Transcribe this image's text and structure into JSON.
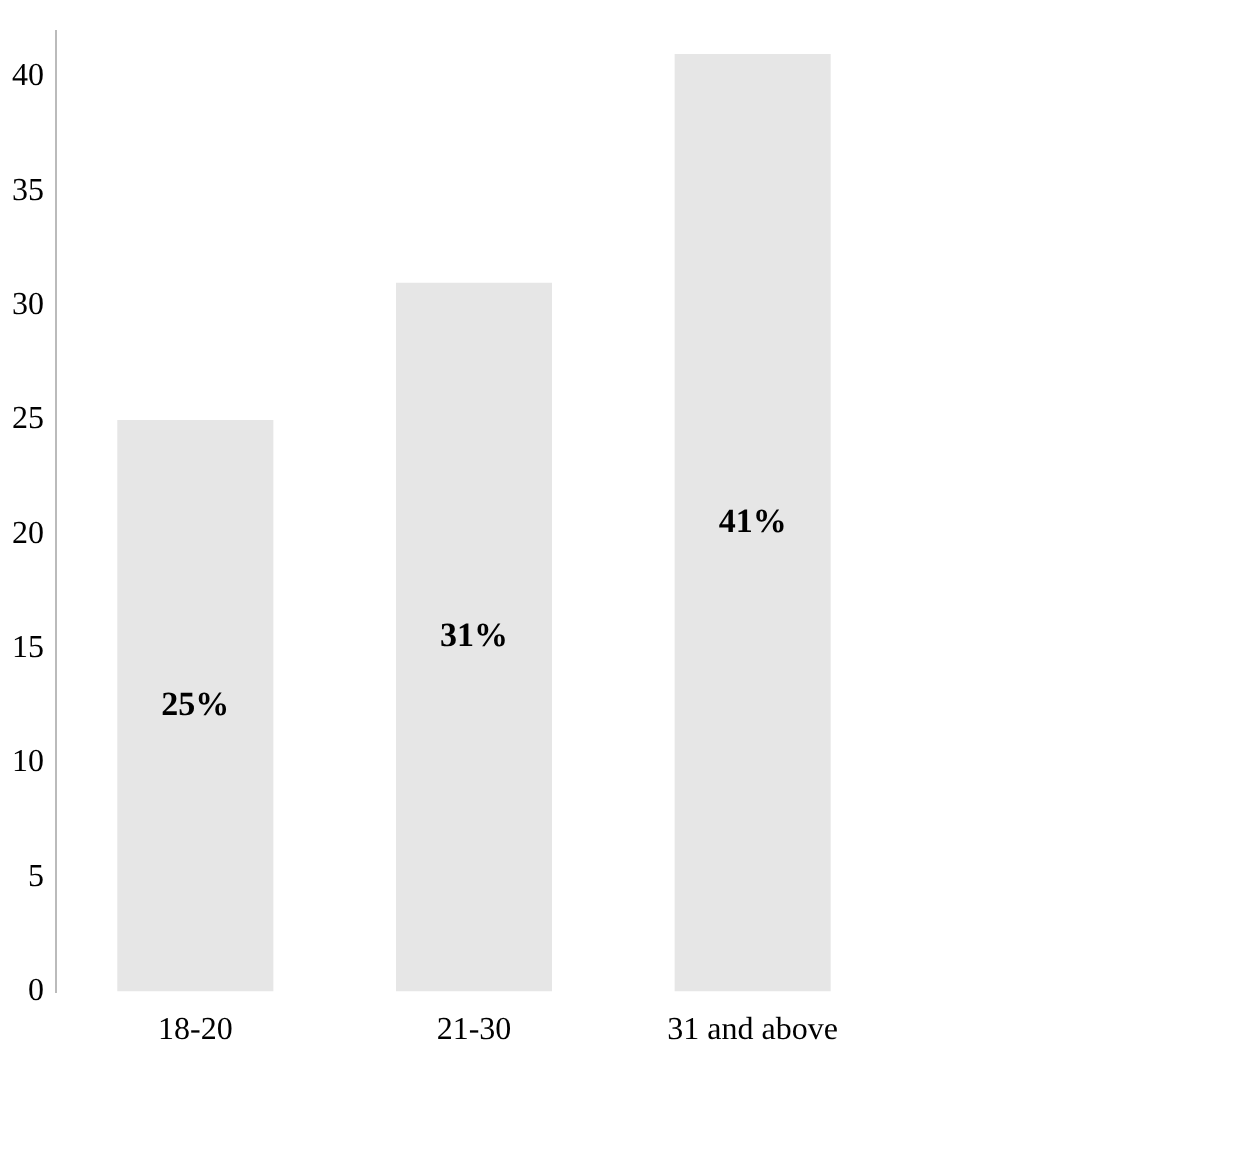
{
  "chart_data": {
    "type": "bar",
    "categories": [
      "18-20",
      "21-30",
      "31 and above"
    ],
    "values": [
      25,
      31,
      41
    ],
    "color": "#e6e6e6",
    "value_labels": [
      "25%",
      "31%",
      "41%"
    ],
    "ylim": [
      0,
      42
    ],
    "yticks": [
      0,
      5,
      10,
      15,
      20,
      25,
      30,
      35,
      40
    ],
    "grid": false,
    "legend": false
  }
}
